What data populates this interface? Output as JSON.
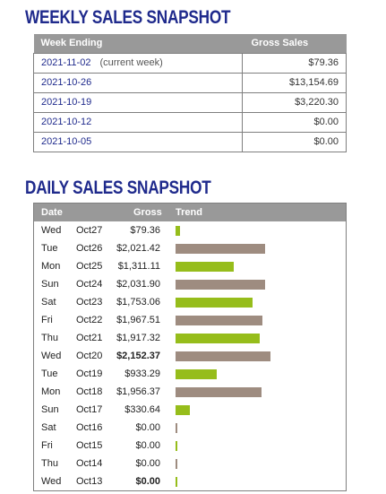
{
  "weekly": {
    "title": "WEEKLY SALES SNAPSHOT",
    "columns": [
      "Week Ending",
      "Gross Sales"
    ],
    "rows": [
      {
        "date": "2021-11-02",
        "note": "(current week)",
        "gross": "$79.36"
      },
      {
        "date": "2021-10-26",
        "note": "",
        "gross": "$13,154.69"
      },
      {
        "date": "2021-10-19",
        "note": "",
        "gross": "$3,220.30"
      },
      {
        "date": "2021-10-12",
        "note": "",
        "gross": "$0.00"
      },
      {
        "date": "2021-10-05",
        "note": "",
        "gross": "$0.00"
      }
    ]
  },
  "daily": {
    "title": "DAILY SALES SNAPSHOT",
    "columns": [
      "Date",
      "Gross",
      "Trend"
    ],
    "colors": {
      "current_week": "#96bd1b",
      "previous_week": "#9e8c80"
    },
    "rows": [
      {
        "day": "Wed",
        "date": "Oct27",
        "gross": "$79.36",
        "value": 79.36,
        "week": "current",
        "bold": false
      },
      {
        "day": "Tue",
        "date": "Oct26",
        "gross": "$2,021.42",
        "value": 2021.42,
        "week": "previous",
        "bold": false
      },
      {
        "day": "Mon",
        "date": "Oct25",
        "gross": "$1,311.11",
        "value": 1311.11,
        "week": "current",
        "bold": false
      },
      {
        "day": "Sun",
        "date": "Oct24",
        "gross": "$2,031.90",
        "value": 2031.9,
        "week": "previous",
        "bold": false
      },
      {
        "day": "Sat",
        "date": "Oct23",
        "gross": "$1,753.06",
        "value": 1753.06,
        "week": "current",
        "bold": false
      },
      {
        "day": "Fri",
        "date": "Oct22",
        "gross": "$1,967.51",
        "value": 1967.51,
        "week": "previous",
        "bold": false
      },
      {
        "day": "Thu",
        "date": "Oct21",
        "gross": "$1,917.32",
        "value": 1917.32,
        "week": "current",
        "bold": false
      },
      {
        "day": "Wed",
        "date": "Oct20",
        "gross": "$2,152.37",
        "value": 2152.37,
        "week": "previous",
        "bold": true
      },
      {
        "day": "Tue",
        "date": "Oct19",
        "gross": "$933.29",
        "value": 933.29,
        "week": "current",
        "bold": false
      },
      {
        "day": "Mon",
        "date": "Oct18",
        "gross": "$1,956.37",
        "value": 1956.37,
        "week": "previous",
        "bold": false
      },
      {
        "day": "Sun",
        "date": "Oct17",
        "gross": "$330.64",
        "value": 330.64,
        "week": "current",
        "bold": false
      },
      {
        "day": "Sat",
        "date": "Oct16",
        "gross": "$0.00",
        "value": 0,
        "week": "previous",
        "bold": false
      },
      {
        "day": "Fri",
        "date": "Oct15",
        "gross": "$0.00",
        "value": 0,
        "week": "current",
        "bold": false
      },
      {
        "day": "Thu",
        "date": "Oct14",
        "gross": "$0.00",
        "value": 0,
        "week": "previous",
        "bold": false
      },
      {
        "day": "Wed",
        "date": "Oct13",
        "gross": "$0.00",
        "value": 0,
        "week": "current",
        "bold": true
      }
    ]
  }
}
